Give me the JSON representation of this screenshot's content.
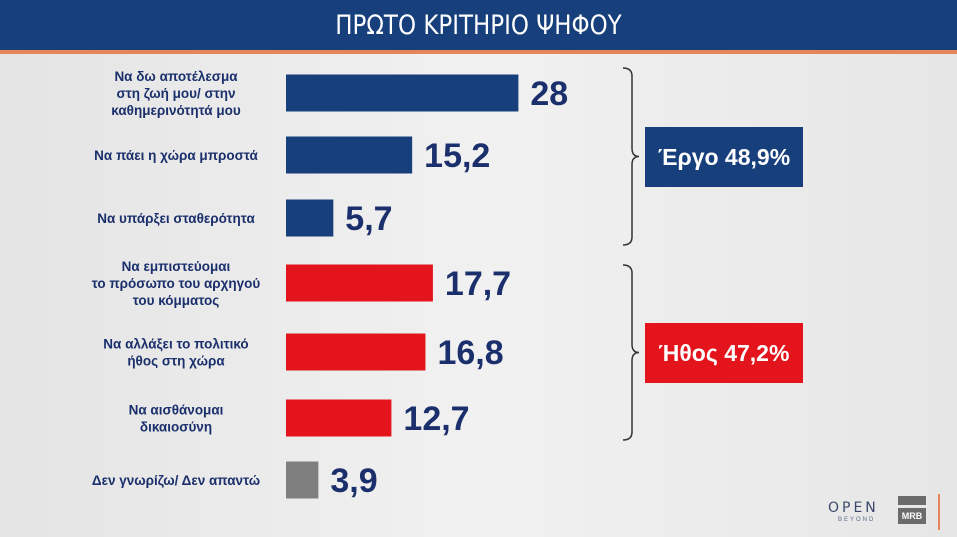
{
  "header": {
    "title": "ΠΡΩΤΟ ΚΡΙΤΗΡΙΟ ΨΗΦΟΥ"
  },
  "chart_data": {
    "type": "bar",
    "orientation": "horizontal",
    "title": "ΠΡΩΤΟ ΚΡΙΤΗΡΙΟ ΨΗΦΟΥ",
    "categories": [
      [
        "Να δω αποτέλεσμα",
        "στη ζωή μου/ στην",
        "καθημερινότητά μου"
      ],
      [
        "Να πάει η χώρα μπροστά"
      ],
      [
        "Να υπάρξει σταθερότητα"
      ],
      [
        "Να εμπιστεύομαι",
        "το πρόσωπο του αρχηγού",
        "του κόμματος"
      ],
      [
        "Να αλλάξει το πολιτικό",
        "ήθος στη χώρα"
      ],
      [
        "Να αισθάνομαι",
        "δικαιοσύνη"
      ],
      [
        "Δεν γνωρίζω/ Δεν απαντώ"
      ]
    ],
    "values": [
      28,
      15.2,
      5.7,
      17.7,
      16.8,
      12.7,
      3.9
    ],
    "value_labels": [
      "28",
      "15,2",
      "5,7",
      "17,7",
      "16,8",
      "12,7",
      "3,9"
    ],
    "bar_colors": [
      "#173f7c",
      "#173f7c",
      "#173f7c",
      "#e3141b",
      "#e3141b",
      "#e3141b",
      "#7f7f7f"
    ],
    "groups": [
      {
        "label": "Έργο 48,9%",
        "rows": [
          0,
          1,
          2
        ],
        "color": "#173f7c"
      },
      {
        "label": "Ήθος 47,2%",
        "rows": [
          3,
          4,
          5
        ],
        "color": "#e3141b"
      }
    ],
    "grid": false
  },
  "branding": {
    "logo_open": "OPEN",
    "logo_beyond": "BEYOND",
    "logo_mrb": "MRB"
  }
}
